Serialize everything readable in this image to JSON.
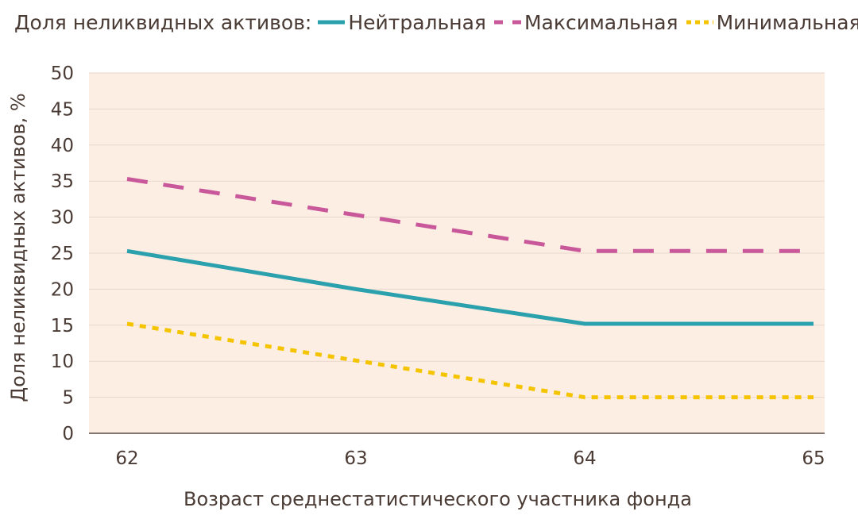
{
  "legend": {
    "title": "Доля неликвидных активов:"
  },
  "chart_data": {
    "type": "line",
    "x": [
      62,
      63,
      64,
      65
    ],
    "series": [
      {
        "name": "Нейтральная",
        "values": [
          25.3,
          20,
          15.2,
          15.2
        ],
        "color": "#2aa1ad",
        "style": "solid"
      },
      {
        "name": "Максимальная",
        "values": [
          35.3,
          30.3,
          25.3,
          25.3
        ],
        "color": "#c9589b",
        "style": "dashed"
      },
      {
        "name": "Минимальная",
        "values": [
          15.2,
          10.1,
          5,
          5
        ],
        "color": "#f5c400",
        "style": "dotted"
      }
    ],
    "title": "",
    "xlabel": "Возраст среднестатистического участника фонда",
    "ylabel": "Доля неликвидных активов, %",
    "ylim": [
      0,
      50
    ],
    "yticks": [
      0,
      5,
      10,
      15,
      20,
      25,
      30,
      35,
      40,
      45,
      50
    ],
    "xticks": [
      "62",
      "63",
      "64",
      "65"
    ],
    "grid": true,
    "legend_position": "top",
    "plot_background": "#fdeee3",
    "grid_color": "#e7d6cb"
  }
}
